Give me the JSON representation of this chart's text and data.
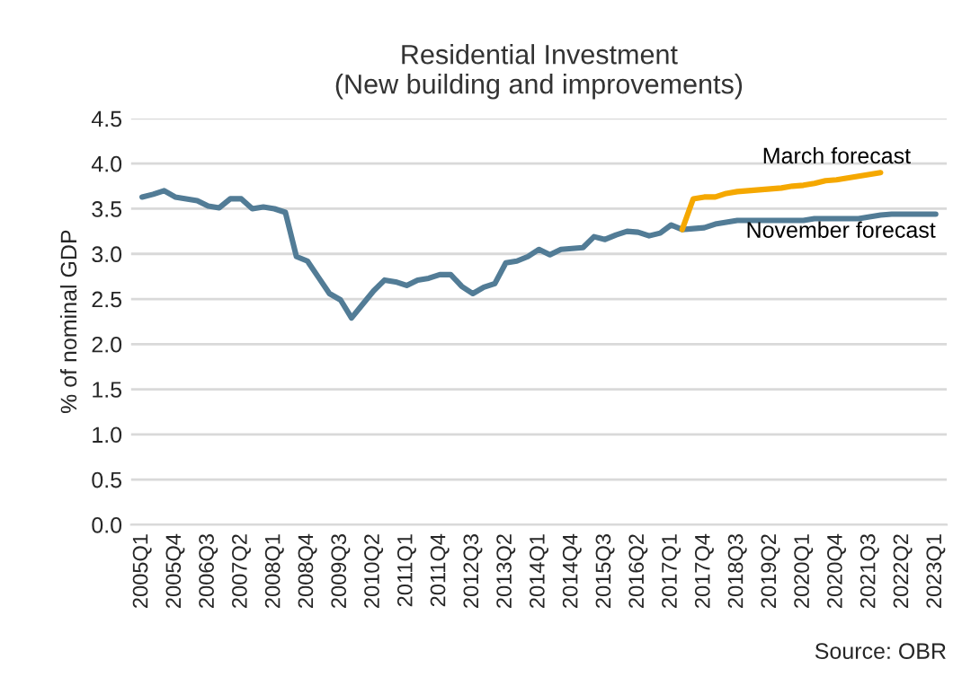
{
  "chart_data": {
    "type": "line",
    "title": "Residential Investment\n(New building and improvements)",
    "ylabel": "% of nominal GDP",
    "categories": [
      "2005Q1",
      null,
      null,
      "2005Q4",
      null,
      null,
      "2006Q3",
      null,
      null,
      "2007Q2",
      null,
      null,
      "2008Q1",
      null,
      null,
      "2008Q4",
      null,
      null,
      "2009Q3",
      null,
      null,
      "2010Q2",
      null,
      null,
      "2011Q1",
      null,
      null,
      "2011Q4",
      null,
      null,
      "2012Q3",
      null,
      null,
      "2013Q2",
      null,
      null,
      "2014Q1",
      null,
      null,
      "2014Q4",
      null,
      null,
      "2015Q3",
      null,
      null,
      "2016Q2",
      null,
      null,
      "2017Q1",
      null,
      null,
      "2017Q4",
      null,
      null,
      "2018Q3",
      null,
      null,
      "2019Q2",
      null,
      null,
      "2020Q1",
      null,
      null,
      "2020Q4",
      null,
      null,
      "2021Q3",
      null,
      null,
      "2022Q2",
      null,
      null,
      "2023Q1"
    ],
    "series": [
      {
        "name": "November forecast",
        "color": "#527c96",
        "values": [
          3.63,
          3.66,
          3.7,
          3.63,
          3.61,
          3.59,
          3.53,
          3.51,
          3.61,
          3.61,
          3.5,
          3.52,
          3.5,
          3.46,
          2.97,
          2.92,
          2.74,
          2.56,
          2.49,
          2.29,
          2.44,
          2.59,
          2.71,
          2.69,
          2.65,
          2.71,
          2.73,
          2.77,
          2.77,
          2.64,
          2.56,
          2.63,
          2.67,
          2.9,
          2.92,
          2.97,
          3.05,
          2.99,
          3.05,
          3.06,
          3.07,
          3.19,
          3.16,
          3.21,
          3.25,
          3.24,
          3.2,
          3.23,
          3.32,
          3.27,
          3.28,
          3.29,
          3.33,
          3.35,
          3.37,
          3.37,
          3.37,
          3.37,
          3.37,
          3.37,
          3.37,
          3.39,
          3.39,
          3.39,
          3.39,
          3.39,
          3.41,
          3.43,
          3.44,
          3.44,
          3.44,
          3.44,
          3.44
        ]
      },
      {
        "name": "March forecast",
        "color": "#f5a800",
        "values": [
          null,
          null,
          null,
          null,
          null,
          null,
          null,
          null,
          null,
          null,
          null,
          null,
          null,
          null,
          null,
          null,
          null,
          null,
          null,
          null,
          null,
          null,
          null,
          null,
          null,
          null,
          null,
          null,
          null,
          null,
          null,
          null,
          null,
          null,
          null,
          null,
          null,
          null,
          null,
          null,
          null,
          null,
          null,
          null,
          null,
          null,
          null,
          null,
          null,
          3.27,
          3.61,
          3.63,
          3.63,
          3.67,
          3.69,
          3.7,
          3.71,
          3.72,
          3.73,
          3.75,
          3.76,
          3.78,
          3.81,
          3.82,
          3.84,
          3.86,
          3.88,
          3.9,
          null,
          null,
          null,
          null,
          null
        ]
      }
    ],
    "ylim": [
      0,
      4.5
    ],
    "yticks": [
      {
        "value": 0,
        "label": "0.0"
      },
      {
        "value": 0.5,
        "label": "0.5"
      },
      {
        "value": 1,
        "label": "1.0"
      },
      {
        "value": 1.5,
        "label": "1.5"
      },
      {
        "value": 2,
        "label": "2.0"
      },
      {
        "value": 2.5,
        "label": "2.5"
      },
      {
        "value": 3,
        "label": "3.0"
      },
      {
        "value": 3.5,
        "label": "3.5"
      },
      {
        "value": 4,
        "label": "4.0"
      },
      {
        "value": 4.5,
        "label": "4.5"
      }
    ],
    "grid": "y",
    "legend": false,
    "marker": "none",
    "line_style": "solid",
    "annotations": [
      "Source: OBR"
    ]
  }
}
